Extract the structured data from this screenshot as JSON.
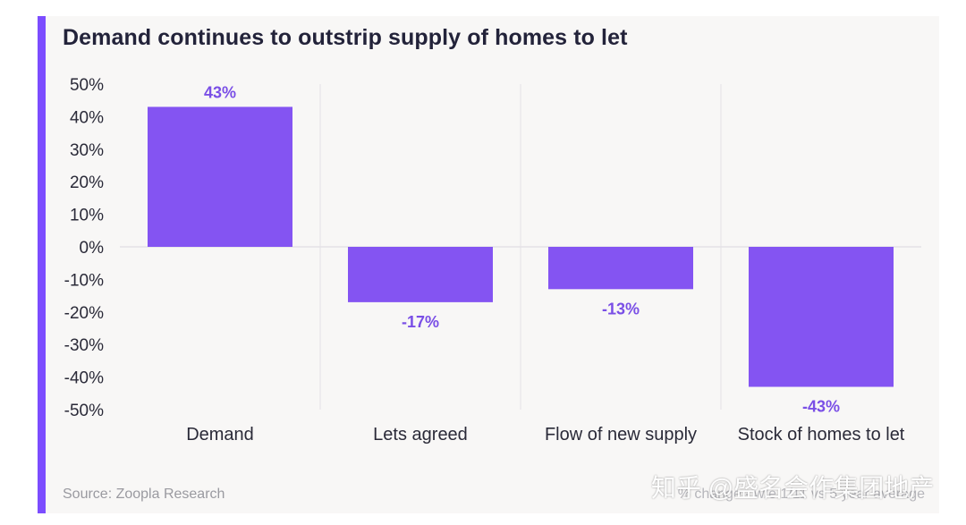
{
  "colors": {
    "accent": "#7c4dff",
    "bar": "#8454f2",
    "label": "#7a4fe6",
    "grid": "#e4e2e6"
  },
  "title": "Demand continues to outstrip supply of homes to let",
  "footer": {
    "source": "Source: Zoopla Research",
    "note": "% change - w/e 1/11 vs 5 year average"
  },
  "watermark": "知乎 @盛名会作集团地产",
  "chart_data": {
    "type": "bar",
    "title": "Demand continues to outstrip supply of homes to let",
    "categories": [
      "Demand",
      "Lets agreed",
      "Flow of new supply",
      "Stock of homes to let"
    ],
    "values": [
      43,
      -17,
      -13,
      -43
    ],
    "data_labels": [
      "43%",
      "-17%",
      "-13%",
      "-43%"
    ],
    "ylim": [
      -50,
      50
    ],
    "yticks": [
      50,
      40,
      30,
      20,
      10,
      0,
      -10,
      -20,
      -30,
      -40,
      -50
    ],
    "ytick_labels": [
      "50%",
      "40%",
      "30%",
      "20%",
      "10%",
      "0%",
      "-10%",
      "-20%",
      "-30%",
      "-40%",
      "-50%"
    ],
    "grid": "vertical separators between categories and a zero line",
    "legend": "none"
  }
}
